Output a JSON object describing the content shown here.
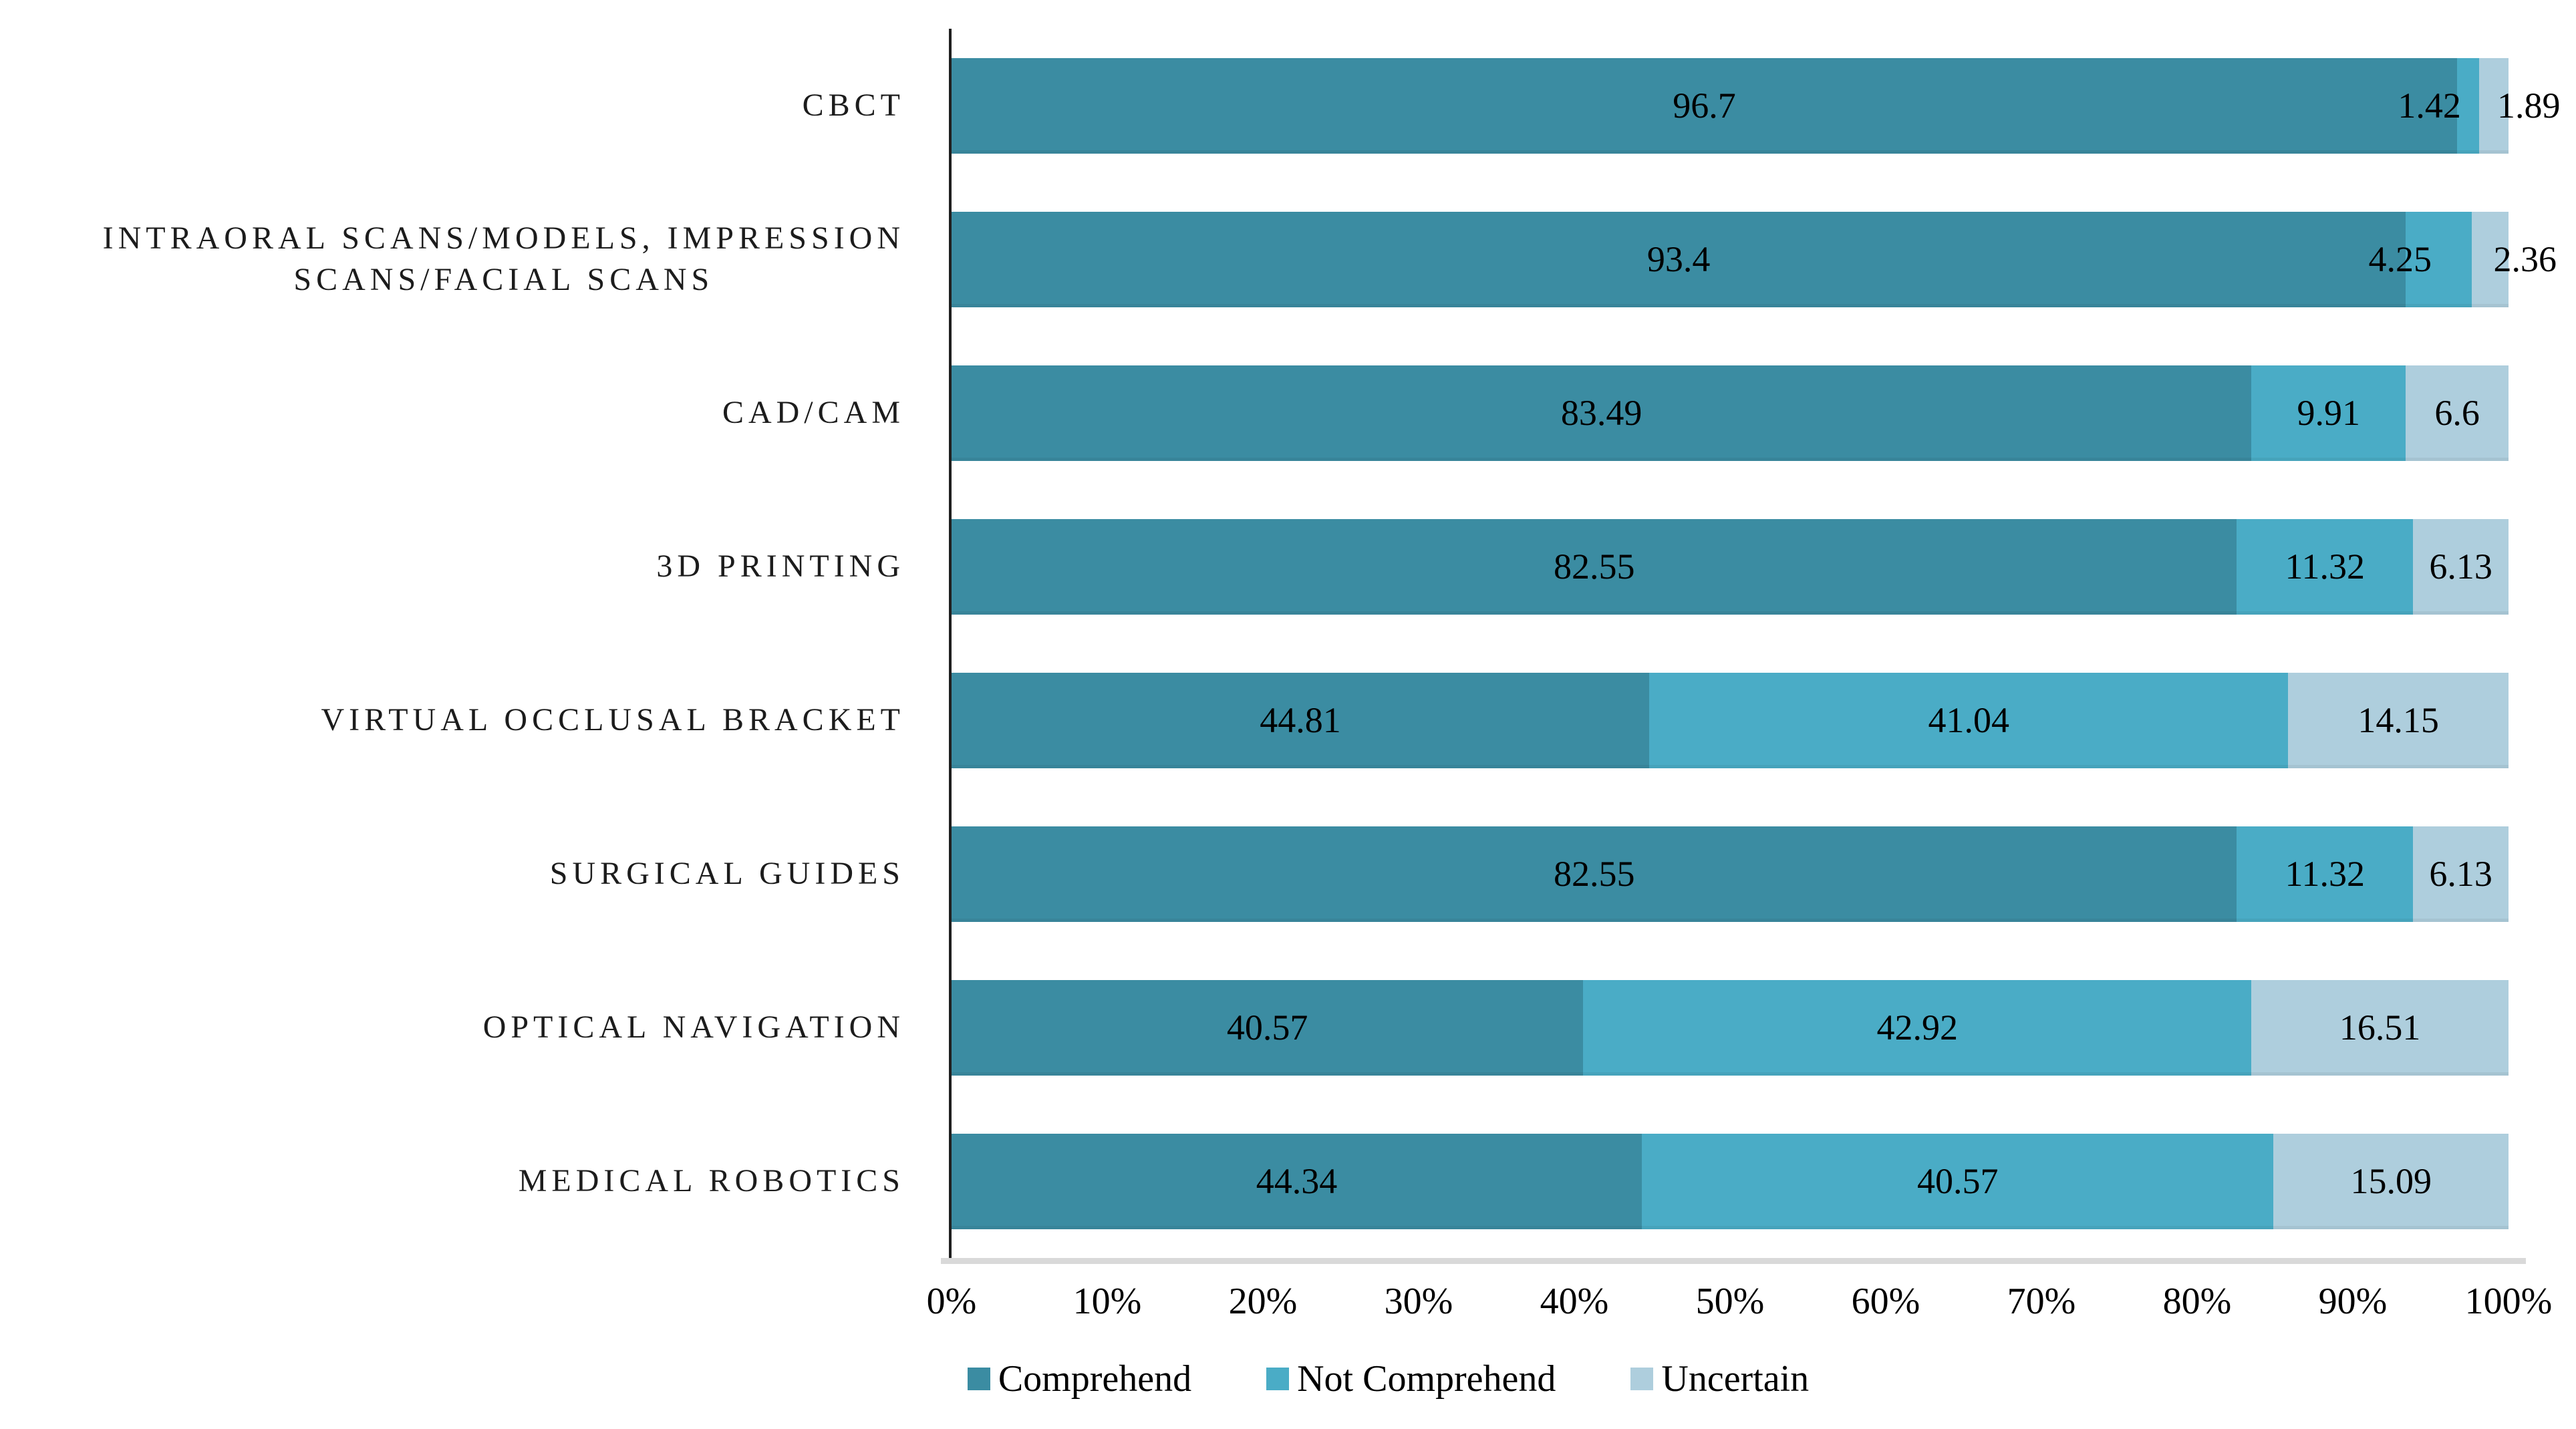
{
  "chart_data": {
    "type": "bar",
    "orientation": "horizontal",
    "stacked": true,
    "title": "",
    "xlabel": "",
    "ylabel": "",
    "xlim": [
      0,
      100
    ],
    "grid": false,
    "legend_position": "bottom",
    "value_labels": "inside-center",
    "categories": [
      [
        "CBCT"
      ],
      [
        "INTRAORAL SCANS/MODELS, IMPRESSION",
        "SCANS/FACIAL SCANS"
      ],
      [
        "CAD/CAM"
      ],
      [
        "3D PRINTING"
      ],
      [
        "VIRTUAL OCCLUSAL BRACKET"
      ],
      [
        "SURGICAL GUIDES"
      ],
      [
        "OPTICAL NAVIGATION"
      ],
      [
        "MEDICAL ROBOTICS"
      ]
    ],
    "series": [
      {
        "name": "Comprehend",
        "color": "#3B8CA2",
        "values": [
          96.7,
          93.4,
          83.49,
          82.55,
          44.81,
          82.55,
          40.57,
          44.34
        ]
      },
      {
        "name": "Not Comprehend",
        "color": "#4AACC6",
        "values": [
          1.42,
          4.25,
          9.91,
          11.32,
          41.04,
          11.32,
          42.92,
          40.57
        ]
      },
      {
        "name": "Uncertain",
        "color": "#AECEDD",
        "values": [
          1.89,
          2.36,
          6.6,
          6.13,
          14.15,
          6.13,
          16.51,
          15.09
        ]
      }
    ],
    "x_ticks": [
      "0%",
      "10%",
      "20%",
      "30%",
      "40%",
      "50%",
      "60%",
      "70%",
      "80%",
      "90%",
      "100%"
    ]
  },
  "colors": {
    "axis_line": "#1F1F1F",
    "baseline": "#D9D9D9",
    "label_text": "#000000"
  }
}
